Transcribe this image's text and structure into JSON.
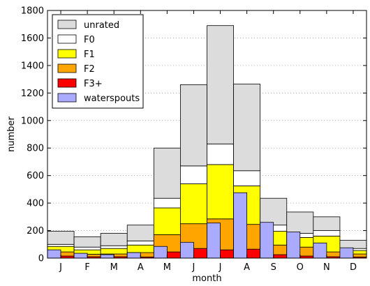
{
  "chart_data": {
    "type": "bar",
    "stacked": true,
    "title": "",
    "xlabel": "month",
    "ylabel": "number",
    "ylim": [
      0,
      1800
    ],
    "yticks": [
      0,
      200,
      400,
      600,
      800,
      1000,
      1200,
      1400,
      1600,
      1800
    ],
    "grid": "horizontal dotted",
    "legend_position": "top-left",
    "categories": [
      "J",
      "F",
      "M",
      "A",
      "M",
      "J",
      "J",
      "A",
      "S",
      "O",
      "N",
      "D"
    ],
    "stack_totals": {
      "F3+": [
        15,
        10,
        10,
        8,
        45,
        70,
        60,
        65,
        25,
        15,
        10,
        8
      ],
      "F2": [
        45,
        28,
        30,
        40,
        170,
        250,
        285,
        245,
        95,
        80,
        45,
        30
      ],
      "F1": [
        85,
        60,
        70,
        95,
        365,
        540,
        680,
        525,
        195,
        150,
        160,
        55
      ],
      "F0": [
        100,
        80,
        90,
        125,
        435,
        670,
        830,
        635,
        240,
        180,
        200,
        70
      ],
      "unrated": [
        195,
        155,
        180,
        240,
        800,
        1260,
        1690,
        1265,
        435,
        335,
        300,
        130
      ]
    },
    "series": [
      {
        "name": "unrated",
        "color": "#dcdcdc",
        "values": [
          95,
          75,
          90,
          115,
          365,
          590,
          860,
          630,
          195,
          155,
          100,
          60
        ]
      },
      {
        "name": "F0",
        "color": "#ffffff",
        "values": [
          15,
          20,
          20,
          30,
          70,
          130,
          150,
          110,
          45,
          30,
          40,
          15
        ]
      },
      {
        "name": "F1",
        "color": "#ffff00",
        "values": [
          40,
          32,
          40,
          55,
          195,
          290,
          395,
          280,
          100,
          70,
          115,
          25
        ]
      },
      {
        "name": "F2",
        "color": "#ffa500",
        "values": [
          30,
          18,
          20,
          32,
          125,
          180,
          225,
          180,
          70,
          65,
          35,
          22
        ]
      },
      {
        "name": "F3+",
        "color": "#ff0000",
        "values": [
          15,
          10,
          10,
          8,
          45,
          70,
          60,
          65,
          25,
          15,
          10,
          8
        ]
      }
    ],
    "waterspouts": {
      "name": "waterspouts",
      "color": "#aaaaff",
      "values": [
        60,
        35,
        25,
        40,
        85,
        115,
        255,
        475,
        260,
        190,
        110,
        75
      ]
    },
    "legend": [
      "unrated",
      "F0",
      "F1",
      "F2",
      "F3+",
      "waterspouts"
    ]
  }
}
